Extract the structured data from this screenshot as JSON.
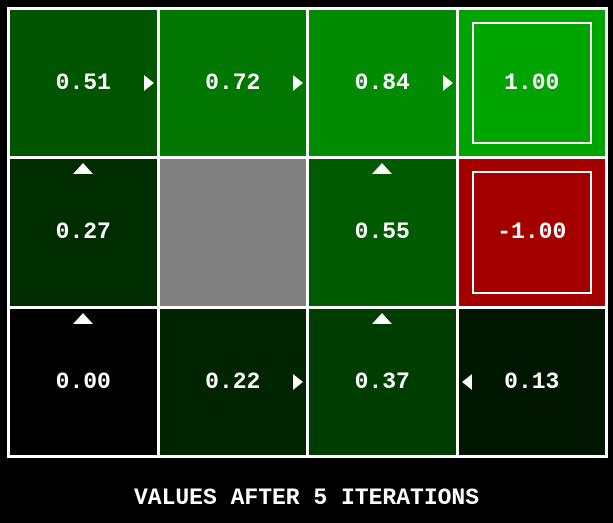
{
  "title": "VALUES AFTER 5 ITERATIONS",
  "colors": {
    "background": "#000000",
    "grid_line": "#ffffff",
    "text": "#ffffff",
    "wall": "#808080",
    "terminal_positive": "#00A400",
    "terminal_negative": "#A40000"
  },
  "grid": {
    "rows": 3,
    "cols": 4,
    "cells": [
      {
        "value": "0.51",
        "arrow": "east",
        "bg": "#005500",
        "type": "state"
      },
      {
        "value": "0.72",
        "arrow": "east",
        "bg": "#007700",
        "type": "state"
      },
      {
        "value": "0.84",
        "arrow": "east",
        "bg": "#008B00",
        "type": "state"
      },
      {
        "value": "1.00",
        "arrow": null,
        "bg": "#00A400",
        "type": "terminal"
      },
      {
        "value": "0.27",
        "arrow": "north",
        "bg": "#002D00",
        "type": "state"
      },
      {
        "value": "",
        "arrow": null,
        "bg": "#808080",
        "type": "wall"
      },
      {
        "value": "0.55",
        "arrow": "north",
        "bg": "#005B00",
        "type": "state"
      },
      {
        "value": "-1.00",
        "arrow": null,
        "bg": "#A40000",
        "type": "terminal"
      },
      {
        "value": "0.00",
        "arrow": "north",
        "bg": "#000000",
        "type": "state"
      },
      {
        "value": "0.22",
        "arrow": "east",
        "bg": "#002500",
        "type": "state"
      },
      {
        "value": "0.37",
        "arrow": "north",
        "bg": "#003D00",
        "type": "state"
      },
      {
        "value": "0.13",
        "arrow": "west",
        "bg": "#001600",
        "type": "state"
      }
    ]
  }
}
